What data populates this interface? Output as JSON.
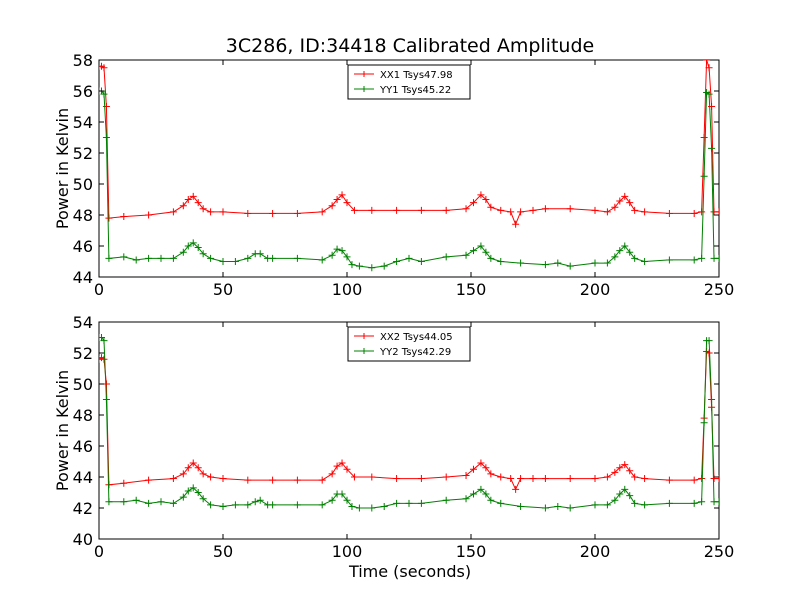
{
  "colors": {
    "xx": "#ff0000",
    "yy": "#008000"
  },
  "figure": {
    "title": "3C286, ID:34418 Calibrated Amplitude",
    "xlabel": "Time (seconds)"
  },
  "chart_data": [
    {
      "type": "line",
      "ylabel": "Power in Kelvin",
      "xlim": [
        0,
        250
      ],
      "ylim": [
        44,
        58
      ],
      "xticks": [
        "0",
        "50",
        "100",
        "150",
        "200",
        "250"
      ],
      "yticks": [
        "44",
        "46",
        "48",
        "50",
        "52",
        "54",
        "56",
        "58"
      ],
      "grid": false,
      "legend": "top-center",
      "series": [
        {
          "name": "XX1 Tsys47.98",
          "key": "xx",
          "marker": "+",
          "x": [
            0,
            1,
            2,
            3,
            4,
            10,
            20,
            30,
            34,
            36,
            38,
            40,
            42,
            45,
            50,
            60,
            70,
            80,
            90,
            94,
            96,
            98,
            100,
            103,
            110,
            120,
            130,
            140,
            148,
            151,
            154,
            156,
            158,
            162,
            166,
            168,
            170,
            175,
            180,
            190,
            200,
            205,
            208,
            210,
            212,
            214,
            216,
            220,
            230,
            240,
            243,
            244,
            245,
            246,
            247,
            248,
            250
          ],
          "y": [
            57.6,
            57.6,
            57.5,
            55,
            47.8,
            47.9,
            48,
            48.2,
            48.6,
            49.0,
            49.2,
            48.8,
            48.4,
            48.2,
            48.2,
            48.1,
            48.1,
            48.1,
            48.2,
            48.6,
            49.0,
            49.3,
            48.8,
            48.3,
            48.3,
            48.3,
            48.3,
            48.3,
            48.4,
            48.8,
            49.3,
            49.0,
            48.5,
            48.3,
            48.2,
            47.4,
            48.2,
            48.3,
            48.4,
            48.4,
            48.3,
            48.2,
            48.5,
            48.9,
            49.2,
            48.8,
            48.3,
            48.2,
            48.1,
            48.1,
            48.2,
            53.0,
            58.0,
            57.5,
            55.0,
            48.2,
            48.2
          ]
        },
        {
          "name": "YY1 Tsys45.22",
          "key": "yy",
          "marker": "+",
          "x": [
            0,
            1,
            2,
            3,
            4,
            10,
            15,
            20,
            25,
            30,
            34,
            36,
            38,
            40,
            42,
            45,
            50,
            55,
            60,
            63,
            65,
            68,
            70,
            80,
            90,
            94,
            96,
            98,
            100,
            102,
            105,
            110,
            115,
            120,
            125,
            130,
            140,
            148,
            151,
            154,
            156,
            158,
            162,
            170,
            180,
            185,
            190,
            200,
            205,
            208,
            210,
            212,
            214,
            216,
            220,
            230,
            240,
            243,
            244,
            245,
            246,
            247,
            248,
            250
          ],
          "y": [
            56,
            56,
            55.8,
            53,
            45.2,
            45.3,
            45.1,
            45.2,
            45.2,
            45.2,
            45.6,
            46.0,
            46.2,
            45.9,
            45.5,
            45.2,
            45.0,
            45.0,
            45.2,
            45.5,
            45.5,
            45.2,
            45.2,
            45.2,
            45.1,
            45.4,
            45.8,
            45.7,
            45.3,
            44.8,
            44.7,
            44.6,
            44.7,
            45.0,
            45.2,
            45.0,
            45.3,
            45.4,
            45.7,
            46.0,
            45.6,
            45.2,
            45.0,
            44.9,
            44.8,
            44.9,
            44.7,
            44.9,
            44.9,
            45.3,
            45.7,
            46.0,
            45.6,
            45.2,
            45.0,
            45.1,
            45.1,
            45.2,
            50.5,
            55.9,
            55.8,
            52.3,
            45.2,
            45.2
          ]
        }
      ]
    },
    {
      "type": "line",
      "ylabel": "Power in Kelvin",
      "xlim": [
        0,
        250
      ],
      "ylim": [
        40,
        54
      ],
      "xticks": [
        "0",
        "50",
        "100",
        "150",
        "200",
        "250"
      ],
      "yticks": [
        "40",
        "42",
        "44",
        "46",
        "48",
        "50",
        "52",
        "54"
      ],
      "grid": false,
      "legend": "top-center",
      "series": [
        {
          "name": "XX2 Tsys44.05",
          "key": "xx",
          "marker": "+",
          "x": [
            0,
            1,
            2,
            3,
            4,
            10,
            20,
            30,
            34,
            36,
            38,
            40,
            42,
            45,
            50,
            60,
            70,
            80,
            90,
            94,
            96,
            98,
            100,
            103,
            110,
            120,
            130,
            140,
            148,
            151,
            154,
            156,
            158,
            162,
            166,
            168,
            170,
            175,
            180,
            190,
            200,
            205,
            208,
            210,
            212,
            214,
            216,
            220,
            230,
            240,
            243,
            244,
            245,
            246,
            247,
            248,
            250
          ],
          "y": [
            51.6,
            51.7,
            51.6,
            50,
            43.5,
            43.6,
            43.8,
            43.9,
            44.2,
            44.6,
            44.9,
            44.6,
            44.2,
            44.0,
            43.9,
            43.8,
            43.8,
            43.8,
            43.8,
            44.2,
            44.7,
            44.9,
            44.5,
            44.0,
            44.0,
            43.9,
            43.9,
            44.0,
            44.1,
            44.5,
            44.9,
            44.6,
            44.2,
            44.0,
            43.9,
            43.2,
            43.9,
            43.9,
            43.9,
            43.9,
            43.9,
            44.0,
            44.3,
            44.6,
            44.8,
            44.4,
            44.0,
            43.9,
            43.8,
            43.8,
            43.9,
            47.8,
            52.1,
            52.0,
            48.5,
            43.9,
            43.9
          ]
        },
        {
          "name": "YY2 Tsys42.29",
          "key": "yy",
          "marker": "+",
          "x": [
            0,
            1,
            2,
            3,
            4,
            10,
            15,
            20,
            25,
            30,
            34,
            36,
            38,
            40,
            42,
            45,
            50,
            55,
            60,
            63,
            65,
            68,
            70,
            80,
            90,
            94,
            96,
            98,
            100,
            102,
            105,
            110,
            115,
            120,
            125,
            130,
            140,
            148,
            151,
            154,
            156,
            158,
            162,
            170,
            180,
            185,
            190,
            200,
            205,
            208,
            210,
            212,
            214,
            216,
            220,
            230,
            240,
            243,
            244,
            245,
            246,
            247,
            248,
            250
          ],
          "y": [
            53,
            53,
            52.8,
            49,
            42.4,
            42.4,
            42.5,
            42.3,
            42.4,
            42.3,
            42.7,
            43.1,
            43.3,
            43.0,
            42.6,
            42.2,
            42.1,
            42.2,
            42.2,
            42.4,
            42.5,
            42.2,
            42.2,
            42.2,
            42.2,
            42.5,
            42.9,
            42.9,
            42.5,
            42.1,
            42.0,
            42.0,
            42.1,
            42.3,
            42.3,
            42.3,
            42.5,
            42.6,
            42.9,
            43.2,
            42.9,
            42.5,
            42.3,
            42.1,
            42.0,
            42.1,
            42.0,
            42.2,
            42.2,
            42.5,
            42.9,
            43.2,
            42.8,
            42.3,
            42.2,
            42.3,
            42.3,
            42.4,
            47.5,
            52.8,
            52.8,
            49.0,
            42.4,
            42.4
          ]
        }
      ]
    }
  ]
}
